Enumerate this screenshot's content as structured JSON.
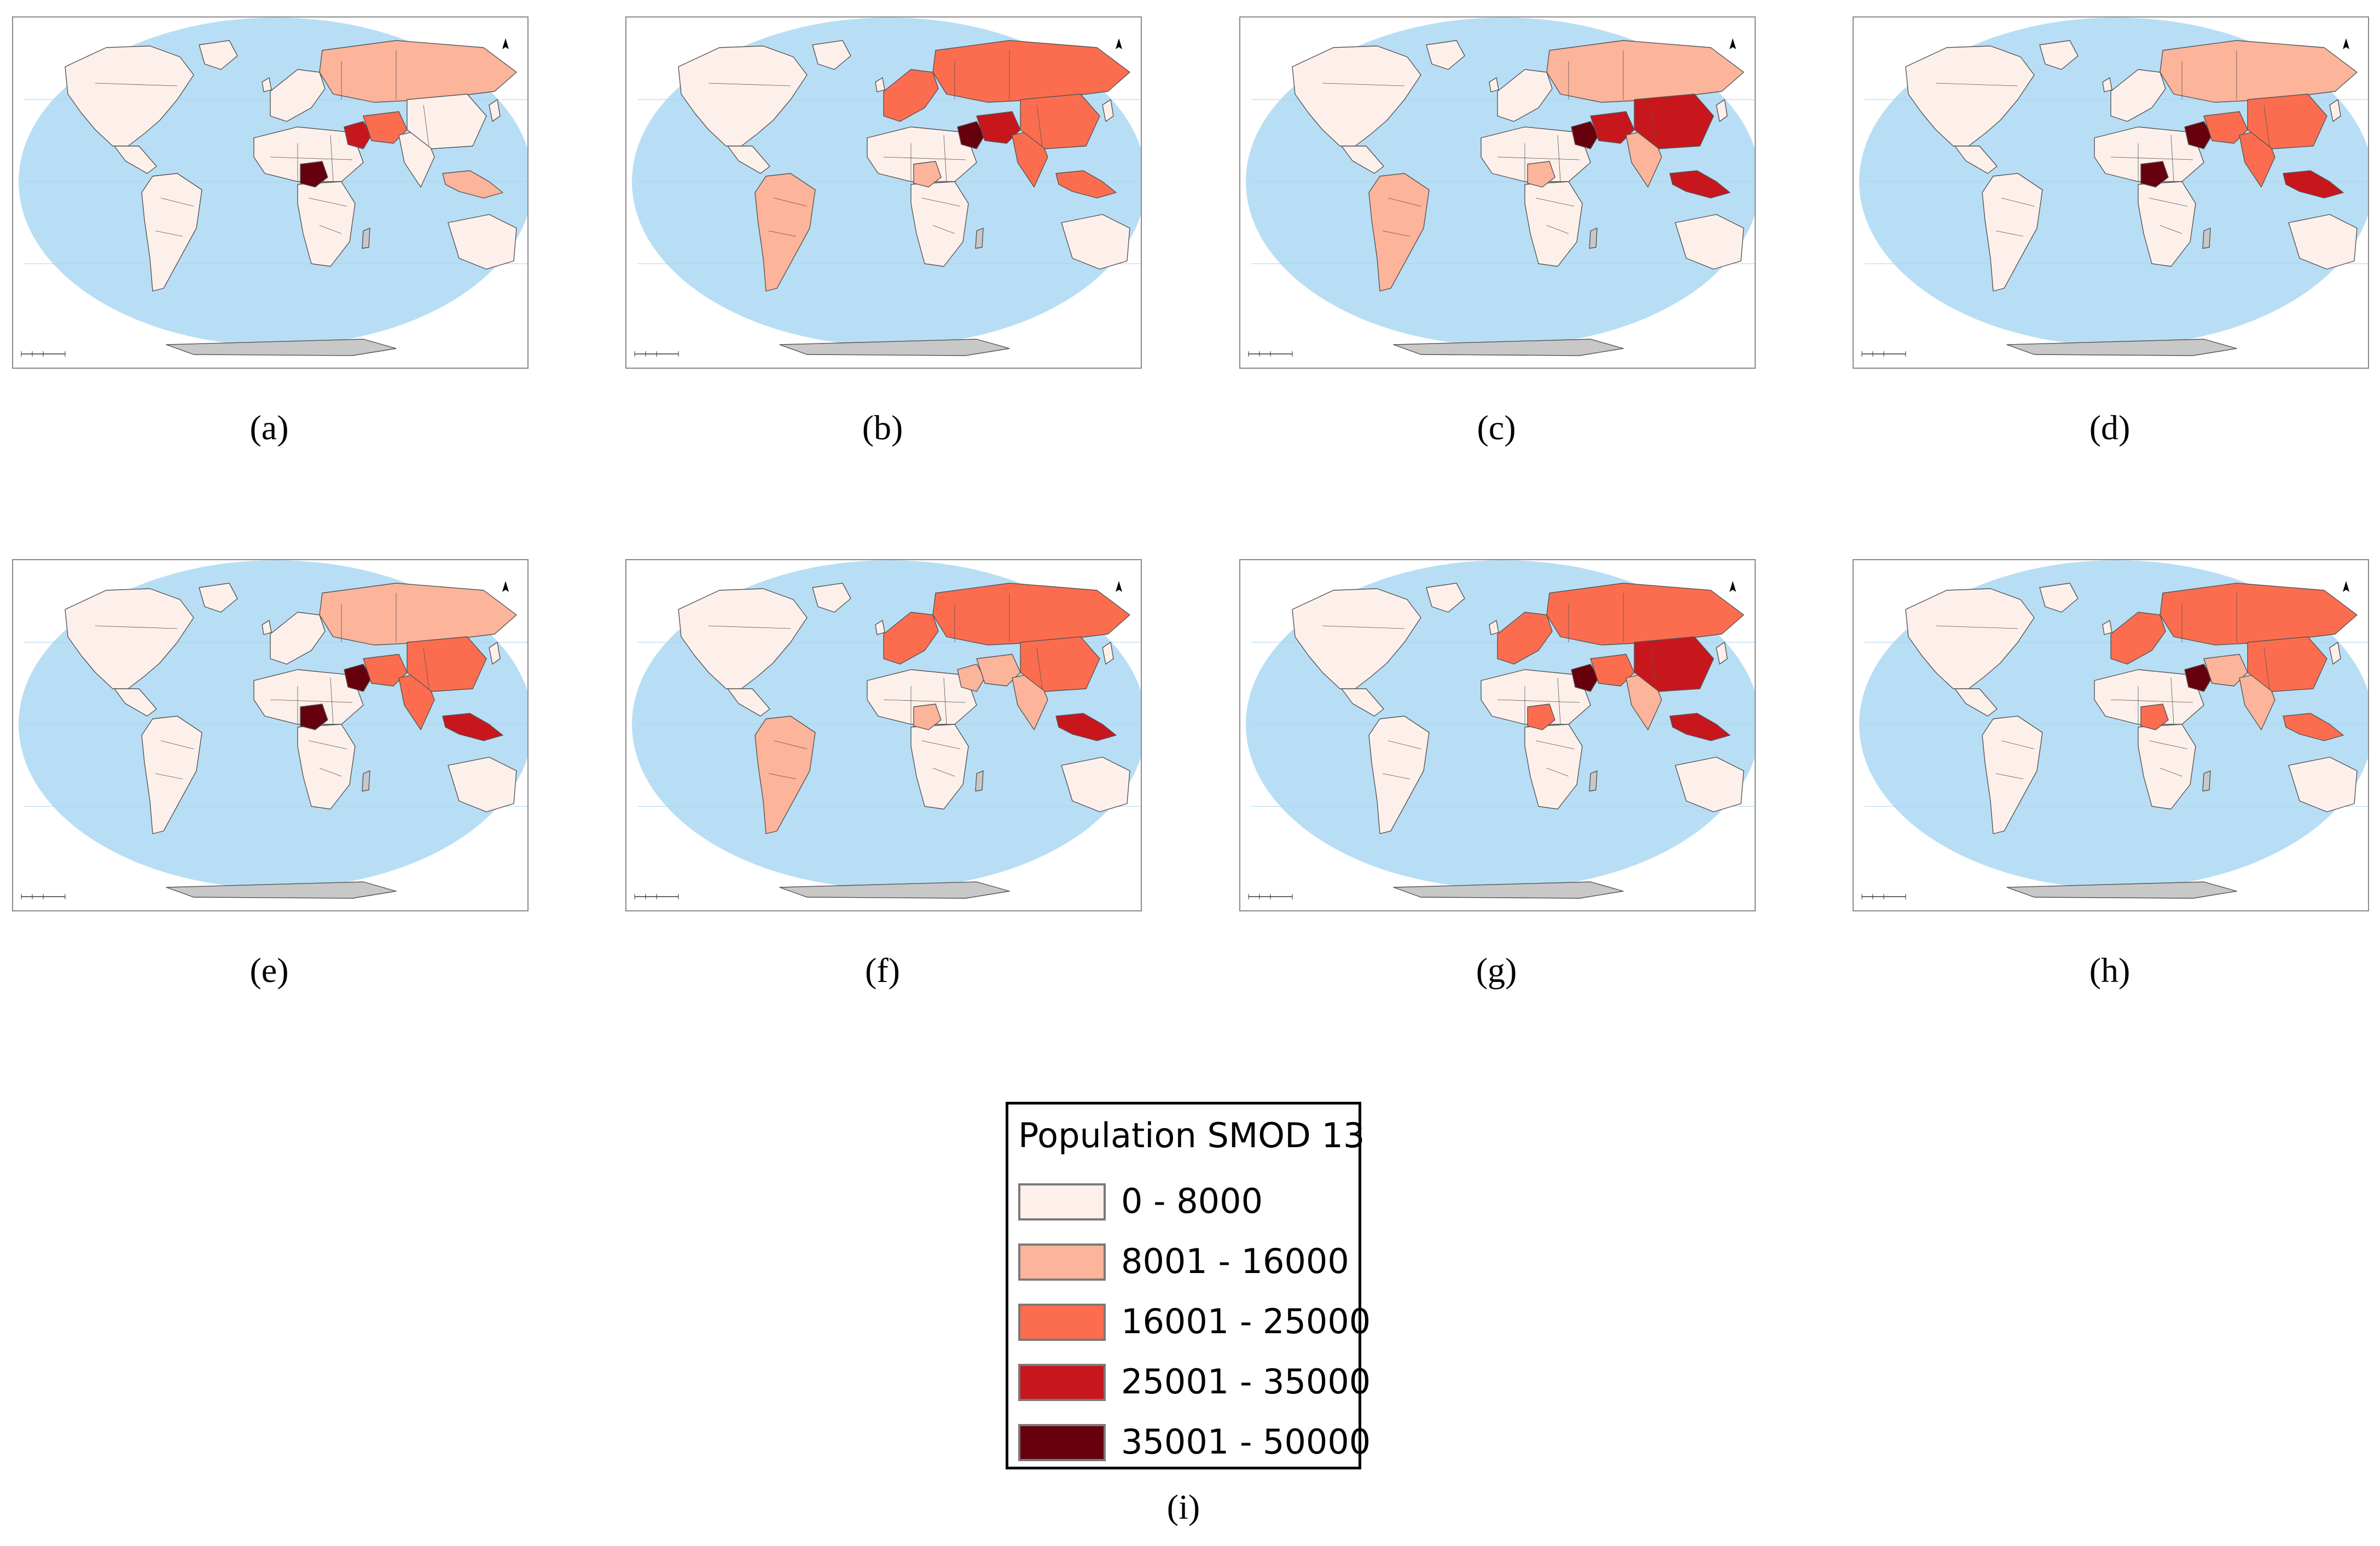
{
  "legend": {
    "title": "Population SMOD 13",
    "classes": [
      {
        "label": "0 - 8000",
        "color": "#fdf0eb"
      },
      {
        "label": "8001 - 16000",
        "color": "#fcb49a"
      },
      {
        "label": "16001 - 25000",
        "color": "#fb6d4e"
      },
      {
        "label": "25001 - 35000",
        "color": "#c8161d"
      },
      {
        "label": "35001 - 50000",
        "color": "#67000d"
      }
    ],
    "caption": "(i)"
  },
  "colors": {
    "ocean": "#b8def5",
    "no_data": "#c8c8c8",
    "border": "#555555"
  },
  "panels": [
    {
      "caption": "(a)",
      "letter": "a",
      "classes": {
        "na": 0,
        "sa": 0,
        "nafr": 0,
        "safr": 0,
        "nigeria": 4,
        "europe": 0,
        "russia": 1,
        "mideast": 3,
        "iran": 2,
        "india": 0,
        "china": 0,
        "sea": 1,
        "australia": 0
      }
    },
    {
      "caption": "(b)",
      "letter": "b",
      "classes": {
        "na": 0,
        "sa": 1,
        "nafr": 0,
        "safr": 0,
        "nigeria": 1,
        "europe": 2,
        "russia": 2,
        "mideast": 4,
        "iran": 3,
        "india": 2,
        "china": 2,
        "sea": 2,
        "australia": 0
      }
    },
    {
      "caption": "(c)",
      "letter": "c",
      "classes": {
        "na": 0,
        "sa": 1,
        "nafr": 0,
        "safr": 0,
        "nigeria": 1,
        "europe": 0,
        "russia": 1,
        "mideast": 4,
        "iran": 3,
        "india": 1,
        "china": 3,
        "sea": 3,
        "australia": 0
      }
    },
    {
      "caption": "(d)",
      "letter": "d",
      "classes": {
        "na": 0,
        "sa": 0,
        "nafr": 0,
        "safr": 0,
        "nigeria": 4,
        "europe": 0,
        "russia": 1,
        "mideast": 4,
        "iran": 2,
        "india": 2,
        "china": 2,
        "sea": 3,
        "australia": 0
      }
    },
    {
      "caption": "(e)",
      "letter": "e",
      "classes": {
        "na": 0,
        "sa": 0,
        "nafr": 0,
        "safr": 0,
        "nigeria": 4,
        "europe": 0,
        "russia": 1,
        "mideast": 4,
        "iran": 2,
        "india": 2,
        "china": 2,
        "sea": 3,
        "australia": 0
      }
    },
    {
      "caption": "(f)",
      "letter": "f",
      "classes": {
        "na": 0,
        "sa": 1,
        "nafr": 0,
        "safr": 0,
        "nigeria": 1,
        "europe": 2,
        "russia": 2,
        "mideast": 1,
        "iran": 1,
        "india": 1,
        "china": 2,
        "sea": 3,
        "australia": 0
      }
    },
    {
      "caption": "(g)",
      "letter": "g",
      "classes": {
        "na": 0,
        "sa": 0,
        "nafr": 0,
        "safr": 0,
        "nigeria": 2,
        "europe": 2,
        "russia": 2,
        "mideast": 4,
        "iran": 2,
        "india": 1,
        "china": 3,
        "sea": 3,
        "australia": 0
      }
    },
    {
      "caption": "(h)",
      "letter": "h",
      "classes": {
        "na": 0,
        "sa": 0,
        "nafr": 0,
        "safr": 0,
        "nigeria": 2,
        "europe": 2,
        "russia": 2,
        "mideast": 4,
        "iran": 1,
        "india": 1,
        "china": 2,
        "sea": 2,
        "australia": 0
      }
    }
  ]
}
